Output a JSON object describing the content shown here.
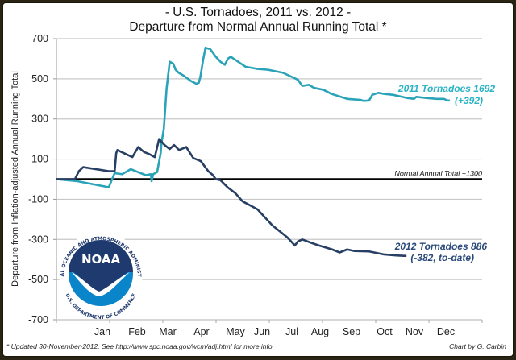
{
  "chart_data": {
    "type": "line",
    "title": "- U.S. Tornadoes, 2011 vs. 2012 -",
    "subtitle": "Departure from Normal Annual Running Total *",
    "xlabel": "",
    "ylabel": "Departure from Inflation-adjusted Annual Running Total",
    "ylim": [
      -700,
      700
    ],
    "yticks": [
      700,
      500,
      300,
      100,
      -100,
      -300,
      -500,
      -700
    ],
    "xlim": [
      0,
      1
    ],
    "grid": true,
    "month_labels": [
      "Jan",
      "Feb",
      "Mar",
      "Apr",
      "May",
      "Jun",
      "Jul",
      "Aug",
      "Sep",
      "Oct",
      "Nov",
      "Dec"
    ],
    "reference_line": {
      "value": 0,
      "label": "Normal Annual Total ~1300"
    },
    "series": [
      {
        "name": "2011",
        "color": "#2aa3b8",
        "label_line1": "2011 Tornadoes 1692",
        "label_line2": "(+392)",
        "x": [
          0.0,
          0.053,
          0.133,
          0.148,
          0.167,
          0.189,
          0.227,
          0.24,
          0.242,
          0.246,
          0.256,
          0.265,
          0.267,
          0.273,
          0.28,
          0.288,
          0.297,
          0.299,
          0.303,
          0.311,
          0.324,
          0.341,
          0.356,
          0.362,
          0.366,
          0.373,
          0.379,
          0.386,
          0.39,
          0.394,
          0.405,
          0.417,
          0.428,
          0.436,
          0.443,
          0.462,
          0.481,
          0.509,
          0.538,
          0.576,
          0.614,
          0.625,
          0.642,
          0.655,
          0.679,
          0.699,
          0.739,
          0.773,
          0.78,
          0.795,
          0.803,
          0.818,
          0.833,
          0.856,
          0.89,
          0.909,
          0.915,
          0.938,
          0.966,
          0.985,
          0.994,
          1.0
        ],
        "values": [
          0,
          -10,
          -40,
          30,
          25,
          50,
          20,
          25,
          -10,
          25,
          35,
          130,
          180,
          250,
          450,
          585,
          575,
          565,
          545,
          530,
          515,
          490,
          475,
          480,
          510,
          595,
          655,
          650,
          650,
          640,
          610,
          585,
          570,
          600,
          610,
          585,
          560,
          550,
          545,
          530,
          495,
          465,
          470,
          455,
          445,
          425,
          400,
          395,
          390,
          392,
          420,
          430,
          425,
          420,
          405,
          400,
          410,
          405,
          400,
          400,
          392,
          392
        ]
      },
      {
        "name": "2012",
        "color": "#263f63",
        "label_line1": "2012 Tornadoes 886",
        "label_line2": "(-382, to-date)",
        "x": [
          0.0,
          0.047,
          0.057,
          0.068,
          0.133,
          0.148,
          0.152,
          0.155,
          0.171,
          0.193,
          0.208,
          0.223,
          0.236,
          0.25,
          0.261,
          0.275,
          0.288,
          0.299,
          0.312,
          0.33,
          0.348,
          0.367,
          0.386,
          0.398,
          0.405,
          0.417,
          0.435,
          0.455,
          0.473,
          0.511,
          0.549,
          0.587,
          0.606,
          0.614,
          0.625,
          0.652,
          0.667,
          0.701,
          0.72,
          0.739,
          0.758,
          0.795,
          0.833,
          0.864,
          0.883,
          0.89
        ],
        "values": [
          0,
          0,
          40,
          60,
          40,
          40,
          130,
          145,
          130,
          110,
          160,
          135,
          125,
          110,
          200,
          170,
          150,
          170,
          145,
          160,
          105,
          90,
          40,
          20,
          0,
          -5,
          -40,
          -70,
          -110,
          -150,
          -230,
          -290,
          -330,
          -310,
          -300,
          -320,
          -330,
          -350,
          -365,
          -350,
          -358,
          -360,
          -375,
          -380,
          -382,
          -382
        ]
      }
    ]
  },
  "footer": {
    "note": "* Updated 30-November-2012. See http://www.spc.noaa.gov/wcm/adj.html for more info.",
    "credit": "Chart by G. Carbin"
  },
  "logo": {
    "text": "NOAA",
    "ring_top": "NATIONAL OCEANIC AND ATMOSPHERIC ADMINISTRATION",
    "ring_bottom": "U.S. DEPARTMENT OF COMMERCE",
    "colors": {
      "dark": "#1f3a6e",
      "light": "#0a85c9"
    }
  }
}
